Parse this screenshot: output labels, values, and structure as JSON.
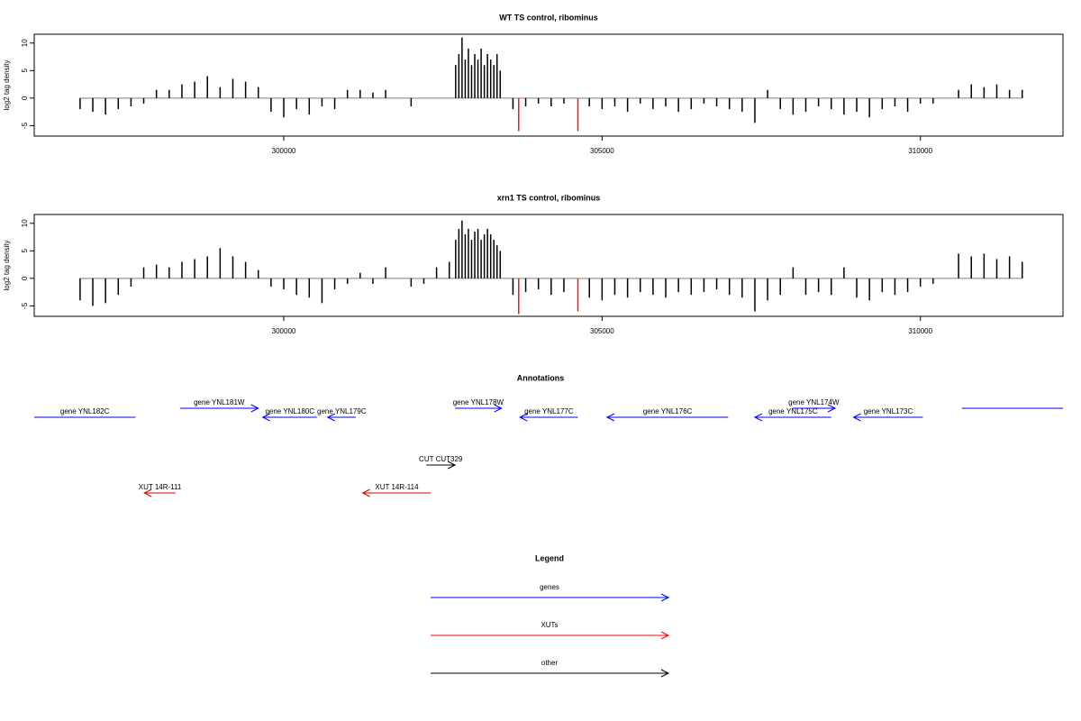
{
  "chart_data": [
    {
      "type": "needle",
      "title": "WT TS control, ribominus",
      "ylabel": "log2 tag density",
      "xlim": [
        296080,
        312240
      ],
      "xticks": [
        300000,
        305000,
        310000
      ],
      "ylim": [
        -6.9,
        11.6
      ],
      "yticks": [
        -5,
        0,
        5,
        10
      ],
      "color": "#000000",
      "x": [
        296800,
        297000,
        297200,
        297400,
        297600,
        297800,
        298000,
        298200,
        298400,
        298600,
        298800,
        299000,
        299200,
        299400,
        299600,
        299800,
        300000,
        300200,
        300400,
        300600,
        300800,
        301000,
        301200,
        301400,
        301600,
        301800,
        302000,
        302200,
        302400,
        302600,
        302700,
        302750,
        302800,
        302850,
        302900,
        302950,
        303000,
        303050,
        303100,
        303150,
        303200,
        303250,
        303300,
        303350,
        303400,
        303600,
        303800,
        304000,
        304200,
        304400,
        304800,
        305000,
        305200,
        305400,
        305600,
        305800,
        306000,
        306200,
        306400,
        306600,
        306800,
        307000,
        307200,
        307400,
        307600,
        307800,
        308000,
        308200,
        308400,
        308600,
        308800,
        309000,
        309200,
        309400,
        309600,
        309800,
        310000,
        310200,
        310400,
        310600,
        310800,
        311000,
        311200,
        311400,
        311600
      ],
      "values": [
        -2,
        -2.5,
        -3,
        -2,
        -1.5,
        -1,
        1.5,
        1.5,
        2.5,
        3,
        4,
        2,
        3.5,
        3,
        2,
        -2.5,
        -3.5,
        -2,
        -3,
        -1.5,
        -2,
        1.5,
        1.5,
        1,
        1.5,
        null,
        -1.5,
        null,
        null,
        null,
        6,
        8,
        11,
        7,
        9,
        6,
        8,
        7,
        9,
        6,
        8,
        7,
        6,
        8,
        5,
        -2,
        -1.5,
        -1,
        -1.5,
        -1,
        -1.5,
        -2,
        -1.5,
        -2.5,
        -1,
        -2,
        -1.5,
        -2.5,
        -2,
        -1,
        -1.5,
        -2,
        -2.5,
        -4.5,
        1.5,
        -2,
        -3,
        -2.5,
        -1.5,
        -2,
        -3,
        -2.5,
        -3.5,
        -2,
        -1.5,
        -2.5,
        -1,
        -1,
        null,
        1.5,
        2.5,
        2,
        2.5,
        1.5,
        1.5
      ],
      "highlight": {
        "color": "#e41a1c",
        "x": [
          303690,
          304620
        ],
        "values": [
          -6,
          -6
        ]
      }
    },
    {
      "type": "needle",
      "title": "xrn1 TS control, ribominus",
      "ylabel": "log2 tag density",
      "xlim": [
        296080,
        312240
      ],
      "xticks": [
        300000,
        305000,
        310000
      ],
      "ylim": [
        -6.9,
        11.6
      ],
      "yticks": [
        -5,
        0,
        5,
        10
      ],
      "color": "#000000",
      "x": [
        296800,
        297000,
        297200,
        297400,
        297600,
        297800,
        298000,
        298200,
        298400,
        298600,
        298800,
        299000,
        299200,
        299400,
        299600,
        299800,
        300000,
        300200,
        300400,
        300600,
        300800,
        301000,
        301200,
        301400,
        301600,
        301800,
        302000,
        302200,
        302400,
        302600,
        302700,
        302750,
        302800,
        302850,
        302900,
        302950,
        303000,
        303050,
        303100,
        303150,
        303200,
        303250,
        303300,
        303350,
        303400,
        303600,
        303800,
        304000,
        304200,
        304400,
        304800,
        305000,
        305200,
        305400,
        305600,
        305800,
        306000,
        306200,
        306400,
        306600,
        306800,
        307000,
        307200,
        307400,
        307600,
        307800,
        308000,
        308200,
        308400,
        308600,
        308800,
        309000,
        309200,
        309400,
        309600,
        309800,
        310000,
        310200,
        310400,
        310600,
        310800,
        311000,
        311200,
        311400,
        311600
      ],
      "values": [
        -4,
        -5,
        -4.5,
        -3,
        -1.5,
        2,
        2.5,
        2,
        3,
        3.5,
        4,
        5.5,
        4,
        3,
        1.5,
        -1.5,
        -2,
        -3,
        -3.5,
        -4.5,
        -2,
        -1,
        1,
        -1,
        2,
        null,
        -1.5,
        -1,
        2,
        3,
        7,
        9,
        10.5,
        8,
        9,
        7,
        8.5,
        9,
        7,
        8,
        9,
        8,
        7,
        6,
        5,
        -3,
        -2.5,
        -2,
        -3,
        -2.5,
        -3.5,
        -4,
        -3,
        -3.5,
        -2.5,
        -3,
        -3.5,
        -2.5,
        -3,
        -2.5,
        -2,
        -3,
        -3.5,
        -6,
        -4,
        -3,
        2,
        -3,
        -2.5,
        -3,
        2,
        -3.5,
        -4,
        -2.5,
        -3,
        -2.5,
        -1.5,
        -1,
        null,
        4.5,
        4,
        4.5,
        3.5,
        4,
        3
      ],
      "highlight": {
        "color": "#e41a1c",
        "x": [
          303690,
          304620
        ],
        "values": [
          -6.5,
          -6
        ]
      }
    }
  ],
  "annotations": {
    "title": "Annotations",
    "genes": {
      "color": "#0000ff",
      "features": [
        {
          "label": "gene YNL182C",
          "start": 296080,
          "end": 297670,
          "strand": "-"
        },
        {
          "label": "gene YNL181W",
          "start": 298370,
          "end": 299600,
          "strand": "+"
        },
        {
          "label": "gene YNL180C",
          "start": 299670,
          "end": 300520,
          "strand": "-"
        },
        {
          "label": "gene YNL179C",
          "start": 300690,
          "end": 301130,
          "strand": "-"
        },
        {
          "label": "gene YNL178W",
          "start": 302690,
          "end": 303420,
          "strand": "+"
        },
        {
          "label": "gene YNL177C",
          "start": 303710,
          "end": 304620,
          "strand": "-"
        },
        {
          "label": "gene YNL176C",
          "start": 305080,
          "end": 306980,
          "strand": "-"
        },
        {
          "label": "gene YNL175C",
          "start": 307400,
          "end": 308600,
          "strand": "-"
        },
        {
          "label": "gene YNL174W",
          "start": 307990,
          "end": 308660,
          "strand": "+"
        },
        {
          "label": "gene YNL173C",
          "start": 308950,
          "end": 310040,
          "strand": "-"
        },
        {
          "label": null,
          "start": 310650,
          "end": 312240,
          "strand": "+"
        }
      ]
    },
    "cuts": {
      "color": "#000000",
      "features": [
        {
          "label": "CUT CUT329",
          "start": 302240,
          "end": 302690,
          "strand": "+"
        }
      ]
    },
    "xuts": {
      "color": "#cc0000",
      "features": [
        {
          "label": "XUT 14R-111",
          "start": 297810,
          "end": 298300,
          "strand": "-"
        },
        {
          "label": "XUT 14R-114",
          "start": 301240,
          "end": 302310,
          "strand": "-"
        }
      ]
    }
  },
  "legend": {
    "title": "Legend",
    "items": [
      {
        "label": "genes",
        "color": "#0000ff"
      },
      {
        "label": "XUTs",
        "color": "#ff0000"
      },
      {
        "label": "other",
        "color": "#000000"
      }
    ]
  }
}
